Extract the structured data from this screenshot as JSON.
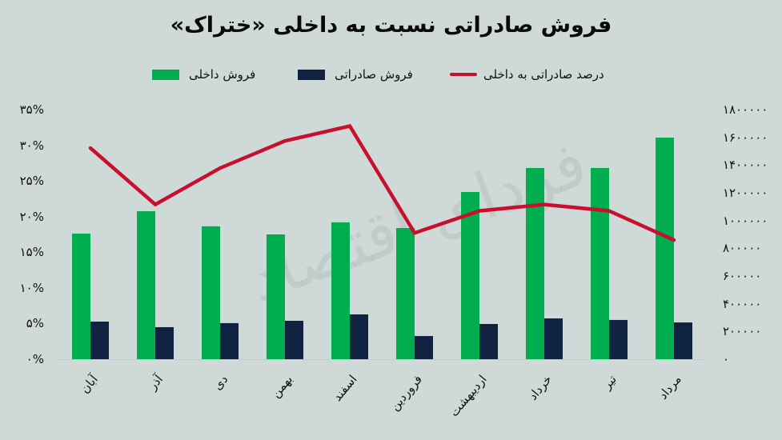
{
  "title": "فروش صادراتی نسبت به داخلی «ختراک»",
  "watermark": "فردای اقتصاد",
  "legend": [
    {
      "label": "درصد صادراتی به داخلی",
      "type": "line",
      "color": "#c8102e"
    },
    {
      "label": "فروش صادراتی",
      "type": "bar",
      "color": "#0f2341"
    },
    {
      "label": "فروش داخلی",
      "type": "bar",
      "color": "#00ad4f"
    }
  ],
  "left_axis": {
    "ticks": [
      "۳۵%",
      "۳۰%",
      "۲۵%",
      "۲۰%",
      "۱۵%",
      "۱۰%",
      "۵%",
      "۰%"
    ]
  },
  "right_axis": {
    "ticks": [
      "۱۸۰۰۰۰۰",
      "۱۶۰۰۰۰۰",
      "۱۴۰۰۰۰۰",
      "۱۲۰۰۰۰۰",
      "۱۰۰۰۰۰۰",
      "۸۰۰۰۰۰",
      "۶۰۰۰۰۰",
      "۴۰۰۰۰۰",
      "۲۰۰۰۰۰",
      "۰"
    ]
  },
  "chart_data": {
    "type": "bar",
    "title": "فروش صادراتی نسبت به داخلی «ختراک»",
    "categories": [
      "آبان",
      "آذر",
      "دی",
      "بهمن",
      "اسفند",
      "فروردین",
      "اردیبهشت",
      "خرداد",
      "تیر",
      "مرداد"
    ],
    "series": [
      {
        "name": "فروش داخلی",
        "type": "bar",
        "axis": "right",
        "color": "#00ad4f",
        "values": [
          906000,
          1067000,
          958000,
          900000,
          987000,
          946000,
          1206000,
          1379000,
          1379000,
          1598000
        ]
      },
      {
        "name": "فروش صادراتی",
        "type": "bar",
        "axis": "right",
        "color": "#0f2341",
        "values": [
          271000,
          231000,
          260000,
          277000,
          323000,
          167000,
          254000,
          294000,
          283000,
          265000
        ]
      },
      {
        "name": "درصد صادراتی به داخلی",
        "type": "line",
        "axis": "left",
        "color": "#c8102e",
        "values": [
          29.6,
          21.7,
          26.8,
          30.6,
          32.7,
          17.7,
          20.8,
          21.7,
          20.8,
          16.7
        ]
      }
    ],
    "left_ylim": [
      0,
      35
    ],
    "left_ylabel_unit": "%",
    "right_ylim": [
      0,
      1800000
    ],
    "xlabel": "",
    "grid": false,
    "legend_position": "top"
  }
}
